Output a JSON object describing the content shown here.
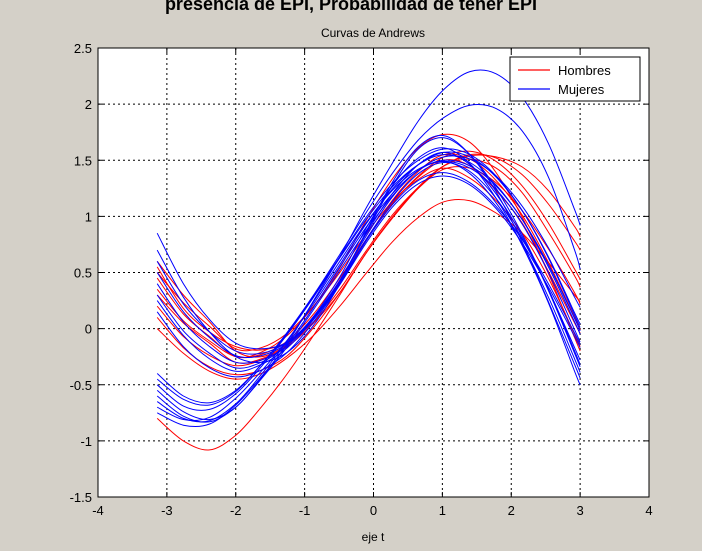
{
  "window_title": "presencia de EPI, Probabilidad de tener EPI",
  "chart_data": {
    "type": "line",
    "title": "Curvas de Andrews",
    "xlabel": "eje t",
    "ylabel": "",
    "xlim": [
      -4,
      4
    ],
    "ylim": [
      -1.5,
      2.5
    ],
    "xticks": [
      -4,
      -3,
      -2,
      -1,
      0,
      1,
      2,
      3,
      4
    ],
    "yticks": [
      -1.5,
      -1,
      -0.5,
      0,
      0.5,
      1,
      1.5,
      2,
      2.5
    ],
    "xtick_labels": [
      "-4",
      "-3",
      "-2",
      "-1",
      "0",
      "1",
      "2",
      "3",
      "4"
    ],
    "ytick_labels": [
      "-1.5",
      "-1",
      "-0.5",
      "0",
      "0.5",
      "1",
      "1.5",
      "2",
      "2.5"
    ],
    "grid": true,
    "legend_position": "top-right",
    "legend": [
      {
        "name": "Hombres",
        "color": "#ff0000"
      },
      {
        "name": "Mujeres",
        "color": "#0000ff"
      }
    ],
    "x": [
      -3.14,
      -2.76,
      -2.38,
      -2.0,
      -1.63,
      -1.25,
      -0.87,
      -0.49,
      -0.11,
      0.27,
      0.65,
      1.02,
      1.4,
      1.78,
      2.16,
      2.54,
      2.92,
      3.0
    ],
    "series": [
      {
        "group": "Hombres",
        "color": "#ff0000",
        "values": [
          0.6,
          0.3,
          0.06,
          -0.2,
          -0.25,
          -0.14,
          0.09,
          0.4,
          0.79,
          1.12,
          1.35,
          1.5,
          1.45,
          1.23,
          0.94,
          0.51,
          0.05,
          -0.04
        ]
      },
      {
        "group": "Hombres",
        "color": "#ff0000",
        "values": [
          0.5,
          0.23,
          0.02,
          -0.18,
          -0.17,
          -0.04,
          0.2,
          0.5,
          0.84,
          1.13,
          1.33,
          1.43,
          1.34,
          1.14,
          0.85,
          0.45,
          -0.05,
          -0.16
        ]
      },
      {
        "group": "Hombres",
        "color": "#ff0000",
        "values": [
          0.3,
          0.05,
          -0.13,
          -0.3,
          -0.27,
          -0.15,
          0.09,
          0.41,
          0.78,
          1.14,
          1.4,
          1.55,
          1.51,
          1.32,
          1.01,
          0.59,
          0.1,
          -0.01
        ]
      },
      {
        "group": "Hombres",
        "color": "#ff0000",
        "values": [
          -0.8,
          -1.0,
          -1.08,
          -0.95,
          -0.7,
          -0.4,
          -0.06,
          0.3,
          0.67,
          0.98,
          1.25,
          1.45,
          1.55,
          1.52,
          1.37,
          1.11,
          0.78,
          0.7
        ]
      },
      {
        "group": "Hombres",
        "color": "#ff0000",
        "values": [
          0.2,
          -0.07,
          -0.24,
          -0.33,
          -0.28,
          -0.16,
          0.05,
          0.32,
          0.67,
          0.99,
          1.25,
          1.42,
          1.43,
          1.3,
          1.05,
          0.71,
          0.32,
          0.22
        ]
      },
      {
        "group": "Hombres",
        "color": "#ff0000",
        "values": [
          0.55,
          0.18,
          -0.03,
          -0.16,
          -0.19,
          -0.12,
          0.06,
          0.35,
          0.69,
          1.01,
          1.26,
          1.45,
          1.54,
          1.53,
          1.44,
          1.23,
          0.91,
          0.82
        ]
      },
      {
        "group": "Hombres",
        "color": "#ff0000",
        "values": [
          0.1,
          -0.17,
          -0.34,
          -0.41,
          -0.37,
          -0.24,
          0.01,
          0.32,
          0.67,
          0.99,
          1.26,
          1.45,
          1.51,
          1.43,
          1.21,
          0.86,
          0.47,
          0.37
        ]
      },
      {
        "group": "Hombres",
        "color": "#ff0000",
        "values": [
          0.45,
          0.13,
          -0.07,
          -0.25,
          -0.21,
          -0.06,
          0.2,
          0.54,
          0.96,
          1.33,
          1.61,
          1.73,
          1.66,
          1.39,
          0.99,
          0.49,
          -0.08,
          -0.2
        ]
      },
      {
        "group": "Hombres",
        "color": "#ff0000",
        "values": [
          0.35,
          0.07,
          -0.11,
          -0.25,
          -0.23,
          -0.11,
          0.13,
          0.45,
          0.79,
          1.11,
          1.36,
          1.53,
          1.58,
          1.49,
          1.27,
          0.94,
          0.53,
          0.44
        ]
      },
      {
        "group": "Hombres",
        "color": "#ff0000",
        "values": [
          0.0,
          -0.22,
          -0.38,
          -0.45,
          -0.4,
          -0.26,
          -0.06,
          0.2,
          0.49,
          0.77,
          0.99,
          1.13,
          1.14,
          1.03,
          0.85,
          0.59,
          0.3,
          0.24
        ]
      },
      {
        "group": "Mujeres",
        "color": "#0000ff",
        "values": [
          0.85,
          0.4,
          0.08,
          -0.13,
          -0.18,
          -0.12,
          0.09,
          0.42,
          0.85,
          1.27,
          1.6,
          1.7,
          1.55,
          1.25,
          0.84,
          0.35,
          -0.17,
          -0.28
        ]
      },
      {
        "group": "Mujeres",
        "color": "#0000ff",
        "values": [
          -0.45,
          -0.63,
          -0.68,
          -0.56,
          -0.32,
          -0.03,
          0.3,
          0.66,
          1.03,
          1.38,
          1.68,
          1.88,
          1.99,
          1.96,
          1.76,
          1.35,
          0.7,
          0.53
        ]
      },
      {
        "group": "Mujeres",
        "color": "#0000ff",
        "values": [
          -0.55,
          -0.74,
          -0.81,
          -0.7,
          -0.44,
          -0.13,
          0.25,
          0.64,
          1.07,
          1.47,
          1.85,
          2.13,
          2.29,
          2.27,
          2.06,
          1.65,
          1.06,
          0.92
        ]
      },
      {
        "group": "Mujeres",
        "color": "#0000ff",
        "values": [
          0.7,
          0.28,
          -0.03,
          -0.25,
          -0.3,
          -0.21,
          0.03,
          0.4,
          0.86,
          1.3,
          1.62,
          1.72,
          1.55,
          1.22,
          0.77,
          0.24,
          -0.32,
          -0.44
        ]
      },
      {
        "group": "Mujeres",
        "color": "#0000ff",
        "values": [
          -0.6,
          -0.78,
          -0.83,
          -0.7,
          -0.45,
          -0.16,
          0.17,
          0.52,
          0.87,
          1.18,
          1.41,
          1.53,
          1.51,
          1.36,
          1.09,
          0.72,
          0.28,
          0.19
        ]
      },
      {
        "group": "Mujeres",
        "color": "#0000ff",
        "values": [
          0.5,
          0.15,
          -0.08,
          -0.24,
          -0.24,
          -0.13,
          0.11,
          0.46,
          0.89,
          1.27,
          1.52,
          1.61,
          1.47,
          1.16,
          0.74,
          0.23,
          -0.38,
          -0.5
        ]
      },
      {
        "group": "Mujeres",
        "color": "#0000ff",
        "values": [
          -0.7,
          -0.81,
          -0.79,
          -0.62,
          -0.38,
          -0.1,
          0.22,
          0.57,
          0.93,
          1.24,
          1.46,
          1.57,
          1.53,
          1.35,
          1.05,
          0.64,
          0.14,
          0.04
        ]
      },
      {
        "group": "Mujeres",
        "color": "#0000ff",
        "values": [
          0.25,
          -0.06,
          -0.27,
          -0.38,
          -0.32,
          -0.17,
          0.08,
          0.4,
          0.78,
          1.1,
          1.32,
          1.39,
          1.3,
          1.09,
          0.79,
          0.4,
          -0.04,
          -0.14
        ]
      },
      {
        "group": "Mujeres",
        "color": "#0000ff",
        "values": [
          -0.5,
          -0.69,
          -0.72,
          -0.58,
          -0.34,
          -0.05,
          0.28,
          0.63,
          0.97,
          1.26,
          1.46,
          1.55,
          1.48,
          1.28,
          0.97,
          0.55,
          0.06,
          -0.05
        ]
      },
      {
        "group": "Mujeres",
        "color": "#0000ff",
        "values": [
          0.4,
          0.06,
          -0.16,
          -0.3,
          -0.28,
          -0.15,
          0.09,
          0.43,
          0.84,
          1.2,
          1.46,
          1.57,
          1.46,
          1.2,
          0.82,
          0.34,
          -0.22,
          -0.34
        ]
      },
      {
        "group": "Mujeres",
        "color": "#0000ff",
        "values": [
          -0.65,
          -0.8,
          -0.82,
          -0.67,
          -0.41,
          -0.11,
          0.24,
          0.6,
          0.94,
          1.23,
          1.42,
          1.49,
          1.43,
          1.24,
          0.93,
          0.5,
          -0.01,
          -0.12
        ]
      },
      {
        "group": "Mujeres",
        "color": "#0000ff",
        "values": [
          0.15,
          -0.16,
          -0.35,
          -0.43,
          -0.37,
          -0.21,
          0.06,
          0.39,
          0.76,
          1.08,
          1.29,
          1.36,
          1.28,
          1.07,
          0.76,
          0.37,
          -0.07,
          -0.17
        ]
      },
      {
        "group": "Mujeres",
        "color": "#0000ff",
        "values": [
          -0.75,
          -0.86,
          -0.85,
          -0.68,
          -0.43,
          -0.14,
          0.19,
          0.55,
          0.9,
          1.2,
          1.41,
          1.5,
          1.45,
          1.27,
          0.97,
          0.57,
          0.09,
          -0.02
        ]
      },
      {
        "group": "Mujeres",
        "color": "#0000ff",
        "values": [
          0.3,
          -0.02,
          -0.22,
          -0.35,
          -0.3,
          -0.15,
          0.1,
          0.43,
          0.82,
          1.17,
          1.41,
          1.49,
          1.38,
          1.12,
          0.75,
          0.28,
          -0.27,
          -0.39
        ]
      },
      {
        "group": "Mujeres",
        "color": "#0000ff",
        "values": [
          -0.4,
          -0.6,
          -0.66,
          -0.55,
          -0.32,
          -0.04,
          0.29,
          0.64,
          0.99,
          1.29,
          1.5,
          1.6,
          1.55,
          1.36,
          1.05,
          0.63,
          0.12,
          0.01
        ]
      },
      {
        "group": "Mujeres",
        "color": "#0000ff",
        "values": [
          0.6,
          0.22,
          -0.03,
          -0.2,
          -0.22,
          -0.12,
          0.1,
          0.42,
          0.79,
          1.13,
          1.38,
          1.48,
          1.4,
          1.16,
          0.8,
          0.35,
          -0.2,
          -0.32
        ]
      }
    ]
  }
}
